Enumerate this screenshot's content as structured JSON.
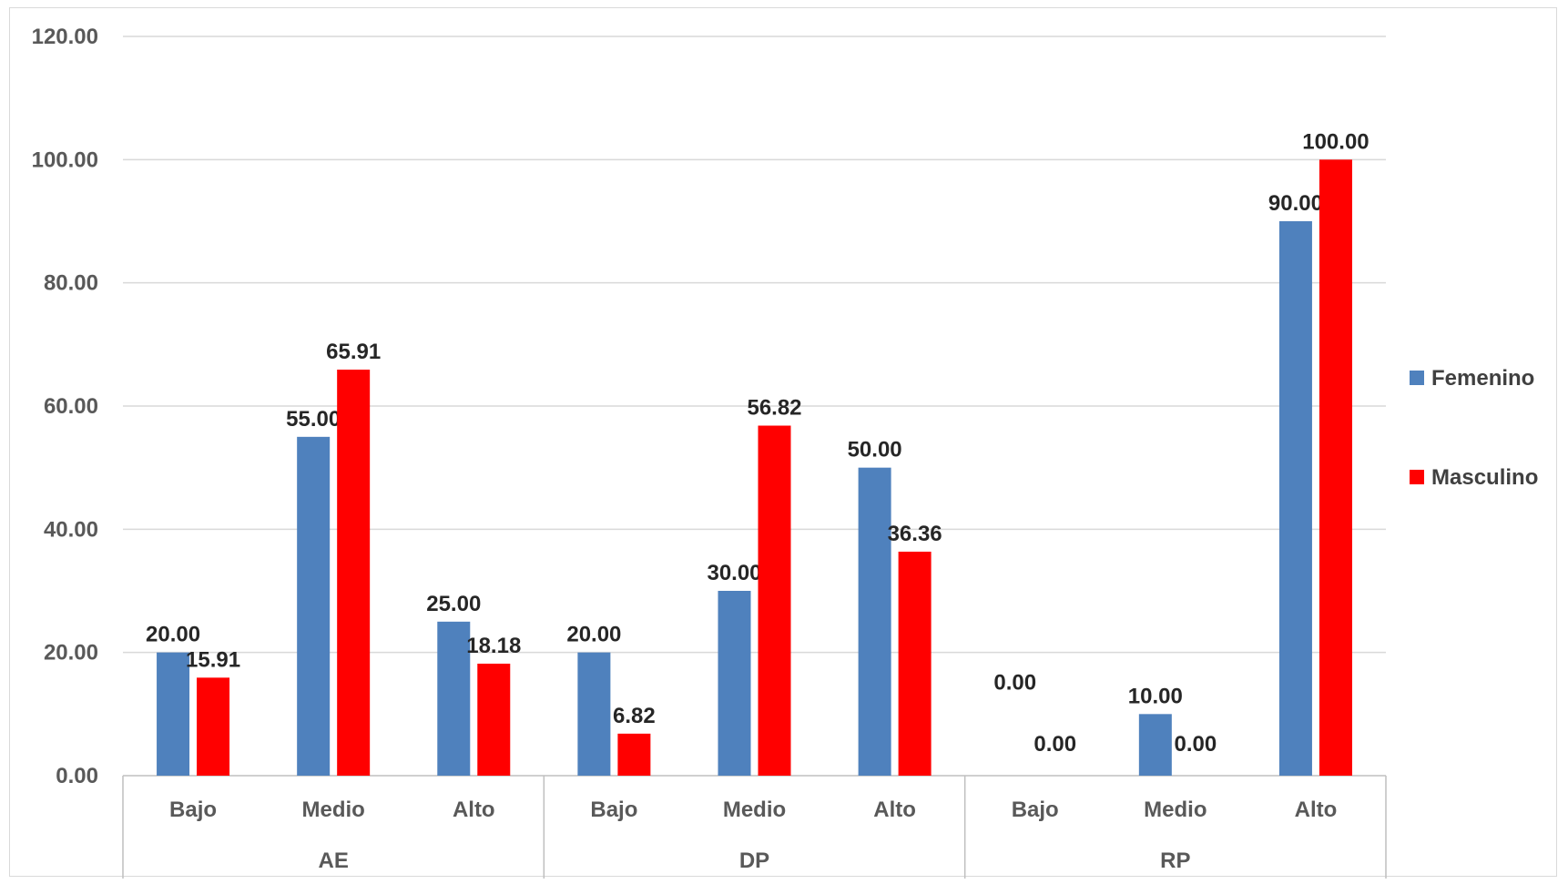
{
  "chart_data": {
    "type": "bar",
    "title": "",
    "xlabel": "",
    "ylabel": "",
    "ylim": [
      0,
      120
    ],
    "yticks": [
      "0.00",
      "20.00",
      "40.00",
      "60.00",
      "80.00",
      "100.00",
      "120.00"
    ],
    "grid": true,
    "legend_position": "right",
    "groups": [
      {
        "name": "AE",
        "categories": [
          "Bajo",
          "Medio",
          "Alto"
        ]
      },
      {
        "name": "DP",
        "categories": [
          "Bajo",
          "Medio",
          "Alto"
        ]
      },
      {
        "name": "RP",
        "categories": [
          "Bajo",
          "Medio",
          "Alto"
        ]
      }
    ],
    "series": [
      {
        "name": "Femenino",
        "color": "#4F81BD",
        "values": [
          20.0,
          55.0,
          25.0,
          20.0,
          30.0,
          50.0,
          0.0,
          10.0,
          90.0
        ],
        "labels": [
          "20.00",
          "55.00",
          "25.00",
          "20.00",
          "30.00",
          "50.00",
          "0.00",
          "10.00",
          "90.00"
        ]
      },
      {
        "name": "Masculino",
        "color": "#FF0000",
        "values": [
          15.91,
          65.91,
          18.18,
          6.82,
          56.82,
          36.36,
          0.0,
          0.0,
          100.0
        ],
        "labels": [
          "15.91",
          "65.91",
          "18.18",
          "6.82",
          "56.82",
          "36.36",
          "0.00",
          "0.00",
          "100.00"
        ]
      }
    ]
  }
}
